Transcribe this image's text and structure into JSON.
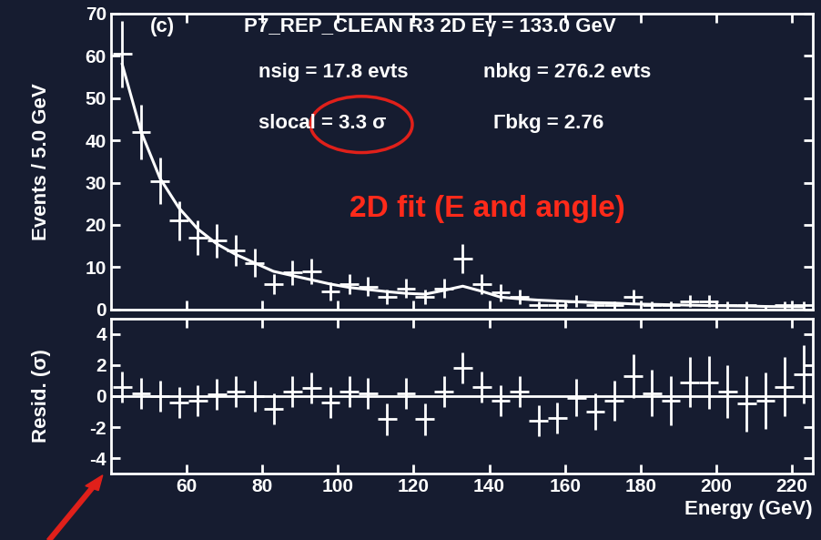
{
  "chart_data": [
    {
      "type": "scatter",
      "ylabel": "Events / 5.0 GeV",
      "x": [
        43,
        48,
        53,
        58,
        63,
        68,
        73,
        78,
        83,
        88,
        93,
        98,
        103,
        108,
        113,
        118,
        123,
        128,
        133,
        138,
        143,
        148,
        153,
        158,
        163,
        168,
        173,
        178,
        183,
        188,
        193,
        198,
        203,
        208,
        213,
        218,
        223
      ],
      "series": [
        {
          "type": "scatter",
          "color": "#ffffff",
          "marker": "none",
          "values": [
            60.4,
            42,
            30.4,
            21,
            17,
            16.3,
            14,
            11,
            6,
            8.7,
            9,
            4.3,
            6,
            5.4,
            3,
            5,
            3,
            5,
            12,
            6,
            4,
            3,
            1,
            1,
            2,
            1,
            1,
            3,
            1,
            1,
            2,
            2,
            1,
            1,
            0,
            1,
            1
          ],
          "errors": [
            7.8,
            6.5,
            5.5,
            4.6,
            4.1,
            4.0,
            3.7,
            3.3,
            2.4,
            2.9,
            3.0,
            2.1,
            2.4,
            2.3,
            1.7,
            2.2,
            1.7,
            2.2,
            3.5,
            2.4,
            2.0,
            1.7,
            1.0,
            1.0,
            1.4,
            1.0,
            1.0,
            1.7,
            1.0,
            1.0,
            1.4,
            1.4,
            1.0,
            1.0,
            1.0,
            1.0,
            1.0
          ]
        },
        {
          "type": "line",
          "color": "#ffffff",
          "line_style": "solid",
          "values": [
            58,
            42,
            31,
            24,
            19,
            15.5,
            13,
            11,
            9,
            8,
            7,
            6,
            5.2,
            4.7,
            4.2,
            3.8,
            3.6,
            4.5,
            5.5,
            4.3,
            2.9,
            2.5,
            2.2,
            2.0,
            1.8,
            1.6,
            1.5,
            1.3,
            1.2,
            1.1,
            1.0,
            0.9,
            0.85,
            0.8,
            0.7,
            0.65,
            0.6
          ]
        }
      ],
      "xlim": [
        40,
        225.5
      ],
      "xticks": [
        60,
        80,
        100,
        120,
        140,
        160,
        180,
        200,
        220
      ],
      "ylim": [
        0,
        70
      ],
      "yticks": [
        0,
        10,
        20,
        30,
        40,
        50,
        60,
        70
      ],
      "tick_labels": "y",
      "annotations": [
        {
          "text": "(c)",
          "color": "#ffffff"
        },
        {
          "text": "P7_REP_CLEAN R3 2D Eγ = 133.0 GeV",
          "color": "#ffffff"
        },
        {
          "text": "nsig = 17.8 evts",
          "color": "#ffffff"
        },
        {
          "text": "nbkg = 276.2 evts",
          "color": "#ffffff"
        },
        {
          "text": "slocal = 3.3 σ",
          "color": "#ffffff"
        },
        {
          "text": "Γbkg = 2.76",
          "color": "#ffffff"
        },
        {
          "text": "2D fit (E and angle)",
          "color": "#ff2a1a"
        }
      ]
    },
    {
      "type": "scatter",
      "ylabel": "Resid. (σ)",
      "xlabel": "Energy (GeV)",
      "x": [
        43,
        48,
        53,
        58,
        63,
        68,
        73,
        78,
        83,
        88,
        93,
        98,
        103,
        108,
        113,
        118,
        123,
        128,
        133,
        138,
        143,
        148,
        153,
        158,
        163,
        168,
        173,
        178,
        183,
        188,
        193,
        198,
        203,
        208,
        213,
        218,
        223
      ],
      "series": [
        {
          "type": "scatter",
          "color": "#ffffff",
          "marker": "none",
          "values": [
            0.6,
            0.2,
            0,
            -0.4,
            -0.3,
            0.1,
            0.3,
            0,
            -0.8,
            0.3,
            0.5,
            -0.4,
            0.3,
            0.2,
            -1.5,
            0.2,
            -1.5,
            0.3,
            1.8,
            0.6,
            -0.3,
            0.3,
            -1.6,
            -1.4,
            -0.1,
            -1.0,
            -0.3,
            1.3,
            0.2,
            -0.3,
            0.9,
            0.9,
            0.3,
            -0.5,
            -0.3,
            0.6,
            1.4
          ],
          "errors": [
            1,
            1,
            1,
            1,
            1,
            1,
            1,
            1,
            1,
            1,
            1,
            1,
            1,
            1,
            1,
            1,
            1,
            1,
            1,
            1,
            1,
            1,
            1,
            1,
            1.2,
            1.2,
            1.3,
            1.4,
            1.5,
            1.6,
            1.6,
            1.7,
            1.7,
            1.8,
            1.8,
            1.9,
            1.9
          ]
        }
      ],
      "baseline": 0,
      "xlim": [
        40,
        225.5
      ],
      "xticks": [
        60,
        80,
        100,
        120,
        140,
        160,
        180,
        200,
        220
      ],
      "ylim": [
        -5,
        5
      ],
      "yticks": [
        -4,
        -2,
        0,
        2,
        4
      ]
    }
  ]
}
